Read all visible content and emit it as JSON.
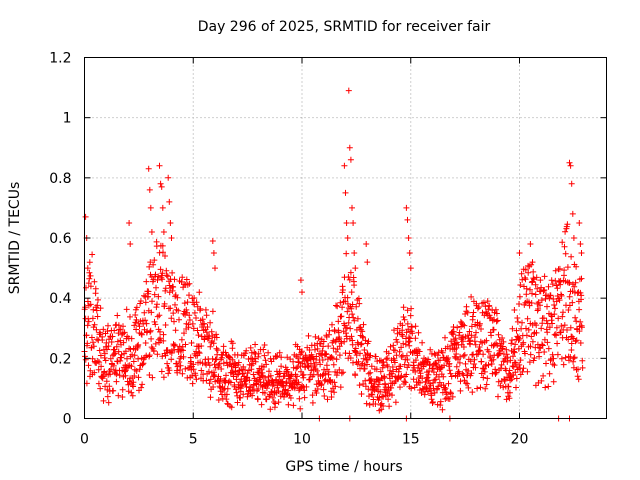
{
  "chart_data": {
    "type": "scatter",
    "title": "Day 296 of 2025, SRMTID for receiver fair",
    "xlabel": "GPS time / hours",
    "ylabel": "SRMTID / TECUs",
    "xlim": [
      0,
      24
    ],
    "ylim": [
      0,
      1.2
    ],
    "x_ticks": [
      0,
      5,
      10,
      15,
      20
    ],
    "x_tick_labels": [
      "0",
      "5",
      "10",
      "15",
      "20"
    ],
    "y_ticks": [
      0,
      0.2,
      0.4,
      0.6,
      0.8,
      1.0,
      1.2
    ],
    "y_tick_labels": [
      "0",
      "0.2",
      "0.4",
      "0.6",
      "0.8",
      "1",
      "1.2"
    ],
    "grid": true,
    "marker": "+",
    "series_color": "#ff0000",
    "data_range_hours": [
      0,
      22.9
    ],
    "profile": [
      [
        0.0,
        0.3
      ],
      [
        0.3,
        0.36
      ],
      [
        0.6,
        0.28
      ],
      [
        0.9,
        0.17
      ],
      [
        1.2,
        0.2
      ],
      [
        1.5,
        0.22
      ],
      [
        1.8,
        0.2
      ],
      [
        2.1,
        0.22
      ],
      [
        2.4,
        0.24
      ],
      [
        2.7,
        0.26
      ],
      [
        3.0,
        0.33
      ],
      [
        3.3,
        0.36
      ],
      [
        3.6,
        0.38
      ],
      [
        3.9,
        0.32
      ],
      [
        4.2,
        0.3
      ],
      [
        4.5,
        0.3
      ],
      [
        4.8,
        0.28
      ],
      [
        5.1,
        0.27
      ],
      [
        5.4,
        0.25
      ],
      [
        5.7,
        0.22
      ],
      [
        6.0,
        0.2
      ],
      [
        6.3,
        0.16
      ],
      [
        6.6,
        0.15
      ],
      [
        6.9,
        0.15
      ],
      [
        7.2,
        0.15
      ],
      [
        7.5,
        0.15
      ],
      [
        7.8,
        0.14
      ],
      [
        8.1,
        0.14
      ],
      [
        8.4,
        0.14
      ],
      [
        8.7,
        0.13
      ],
      [
        9.0,
        0.12
      ],
      [
        9.3,
        0.12
      ],
      [
        9.6,
        0.13
      ],
      [
        9.9,
        0.14
      ],
      [
        10.2,
        0.16
      ],
      [
        10.5,
        0.17
      ],
      [
        10.8,
        0.17
      ],
      [
        11.1,
        0.17
      ],
      [
        11.4,
        0.2
      ],
      [
        11.7,
        0.25
      ],
      [
        12.0,
        0.34
      ],
      [
        12.3,
        0.32
      ],
      [
        12.6,
        0.26
      ],
      [
        12.9,
        0.18
      ],
      [
        13.2,
        0.13
      ],
      [
        13.5,
        0.11
      ],
      [
        13.8,
        0.13
      ],
      [
        14.1,
        0.16
      ],
      [
        14.4,
        0.2
      ],
      [
        14.7,
        0.24
      ],
      [
        15.0,
        0.22
      ],
      [
        15.3,
        0.18
      ],
      [
        15.6,
        0.14
      ],
      [
        15.9,
        0.13
      ],
      [
        16.2,
        0.14
      ],
      [
        16.5,
        0.15
      ],
      [
        16.8,
        0.18
      ],
      [
        17.1,
        0.2
      ],
      [
        17.4,
        0.22
      ],
      [
        17.7,
        0.24
      ],
      [
        18.0,
        0.25
      ],
      [
        18.3,
        0.26
      ],
      [
        18.6,
        0.27
      ],
      [
        18.9,
        0.24
      ],
      [
        19.2,
        0.18
      ],
      [
        19.5,
        0.15
      ],
      [
        19.8,
        0.25
      ],
      [
        20.1,
        0.32
      ],
      [
        20.4,
        0.36
      ],
      [
        20.7,
        0.33
      ],
      [
        21.0,
        0.3
      ],
      [
        21.3,
        0.28
      ],
      [
        21.6,
        0.3
      ],
      [
        21.9,
        0.38
      ],
      [
        22.2,
        0.42
      ],
      [
        22.5,
        0.36
      ],
      [
        22.8,
        0.32
      ]
    ],
    "spikes": [
      [
        0.05,
        0.67
      ],
      [
        0.1,
        0.6
      ],
      [
        0.15,
        0.5
      ],
      [
        0.2,
        0.45
      ],
      [
        2.05,
        0.65
      ],
      [
        2.1,
        0.58
      ],
      [
        2.95,
        0.83
      ],
      [
        3.0,
        0.76
      ],
      [
        3.05,
        0.7
      ],
      [
        3.1,
        0.62
      ],
      [
        3.45,
        0.84
      ],
      [
        3.5,
        0.78
      ],
      [
        3.55,
        0.77
      ],
      [
        3.6,
        0.7
      ],
      [
        3.65,
        0.62
      ],
      [
        3.7,
        0.54
      ],
      [
        3.85,
        0.8
      ],
      [
        3.9,
        0.72
      ],
      [
        3.95,
        0.65
      ],
      [
        4.0,
        0.6
      ],
      [
        5.9,
        0.59
      ],
      [
        5.95,
        0.55
      ],
      [
        6.0,
        0.5
      ],
      [
        9.95,
        0.46
      ],
      [
        10.0,
        0.42
      ],
      [
        11.95,
        0.84
      ],
      [
        12.0,
        0.75
      ],
      [
        12.05,
        0.65
      ],
      [
        12.1,
        0.6
      ],
      [
        12.15,
        1.09
      ],
      [
        12.2,
        0.9
      ],
      [
        12.25,
        0.86
      ],
      [
        12.3,
        0.7
      ],
      [
        12.35,
        0.65
      ],
      [
        12.4,
        0.55
      ],
      [
        12.45,
        0.5
      ],
      [
        12.95,
        0.58
      ],
      [
        13.0,
        0.52
      ],
      [
        14.8,
        0.7
      ],
      [
        14.85,
        0.66
      ],
      [
        14.9,
        0.6
      ],
      [
        14.95,
        0.55
      ],
      [
        15.0,
        0.5
      ],
      [
        20.0,
        0.55
      ],
      [
        20.5,
        0.58
      ],
      [
        20.6,
        0.52
      ],
      [
        22.3,
        0.85
      ],
      [
        22.35,
        0.84
      ],
      [
        22.4,
        0.78
      ],
      [
        22.45,
        0.68
      ],
      [
        22.5,
        0.6
      ],
      [
        22.75,
        0.65
      ],
      [
        22.8,
        0.58
      ],
      [
        22.85,
        0.55
      ]
    ],
    "baseline_markers_hours": [
      10.8,
      12.2,
      14.8,
      16.8,
      21.8,
      22.3
    ],
    "point_spacing_hours": 0.012
  }
}
